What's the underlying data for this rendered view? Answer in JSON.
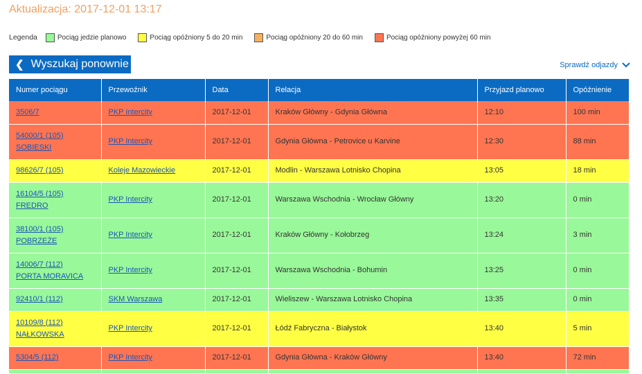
{
  "header": {
    "update_text": "Aktualizacja: 2017-12-01 13:17"
  },
  "legend": {
    "title": "Legenda",
    "items": [
      {
        "label": "Pociąg jedzie planowo",
        "color": "#99f899"
      },
      {
        "label": "Pociąg opóźniony 5 do 20 min",
        "color": "#ffff44"
      },
      {
        "label": "Pociąg opóźniony 20 do 60 min",
        "color": "#f5b060"
      },
      {
        "label": "Pociąg opóźniony powyżej 60 min",
        "color": "#ff7552"
      }
    ]
  },
  "toolbar": {
    "search_again_label": "Wyszukaj ponownie",
    "check_departures_label": "Sprawdź odjazdy"
  },
  "table": {
    "headers": [
      "Numer pociągu",
      "Przewoźnik",
      "Data",
      "Relacja",
      "Przyjazd planowo",
      "Opóźnienie"
    ],
    "rows": [
      {
        "number": "3506/7",
        "name": "",
        "carrier": "PKP Intercity",
        "date": "2017-12-01",
        "route": "Kraków Główny - Gdynia Główna",
        "arrival": "12:10",
        "delay": "100 min",
        "status_color": "#ff7552"
      },
      {
        "number": "54000/1 (105)",
        "name": "SOBIESKI",
        "carrier": "PKP Intercity",
        "date": "2017-12-01",
        "route": "Gdynia Główna - Petrovice u Karvine",
        "arrival": "12:30",
        "delay": "88 min",
        "status_color": "#ff7552"
      },
      {
        "number": "98626/7 (105)",
        "name": "",
        "carrier": "Koleje Mazowieckie",
        "date": "2017-12-01",
        "route": "Modlin - Warszawa Lotnisko Chopina",
        "arrival": "13:05",
        "delay": "18 min",
        "status_color": "#ffff44"
      },
      {
        "number": "16104/5 (105)",
        "name": "FREDRO",
        "carrier": "PKP Intercity",
        "date": "2017-12-01",
        "route": "Warszawa Wschodnia - Wrocław Główny",
        "arrival": "13:20",
        "delay": "0 min",
        "status_color": "#99f899"
      },
      {
        "number": "38100/1 (105)",
        "name": "POBRZEŻE",
        "carrier": "PKP Intercity",
        "date": "2017-12-01",
        "route": "Kraków Główny - Kołobrzeg",
        "arrival": "13:24",
        "delay": "3 min",
        "status_color": "#99f899"
      },
      {
        "number": "14006/7 (112)",
        "name": "PORTA MORAVICA",
        "carrier": "PKP Intercity",
        "date": "2017-12-01",
        "route": "Warszawa Wschodnia - Bohumin",
        "arrival": "13:25",
        "delay": "0 min",
        "status_color": "#99f899"
      },
      {
        "number": "92410/1 (112)",
        "name": "",
        "carrier": "SKM Warszawa",
        "date": "2017-12-01",
        "route": "Wieliszew - Warszawa Lotnisko Chopina",
        "arrival": "13:35",
        "delay": "0 min",
        "status_color": "#99f899"
      },
      {
        "number": "10109/8 (112)",
        "name": "NAŁKOWSKA",
        "carrier": "PKP Intercity",
        "date": "2017-12-01",
        "route": "Łódź Fabryczna - Białystok",
        "arrival": "13:40",
        "delay": "5 min",
        "status_color": "#ffff44"
      },
      {
        "number": "5304/5 (112)",
        "name": "",
        "carrier": "PKP Intercity",
        "date": "2017-12-01",
        "route": "Gdynia Główna - Kraków Główny",
        "arrival": "13:40",
        "delay": "72 min",
        "status_color": "#ff7552"
      }
    ],
    "partial_row_color": "#99f899"
  }
}
